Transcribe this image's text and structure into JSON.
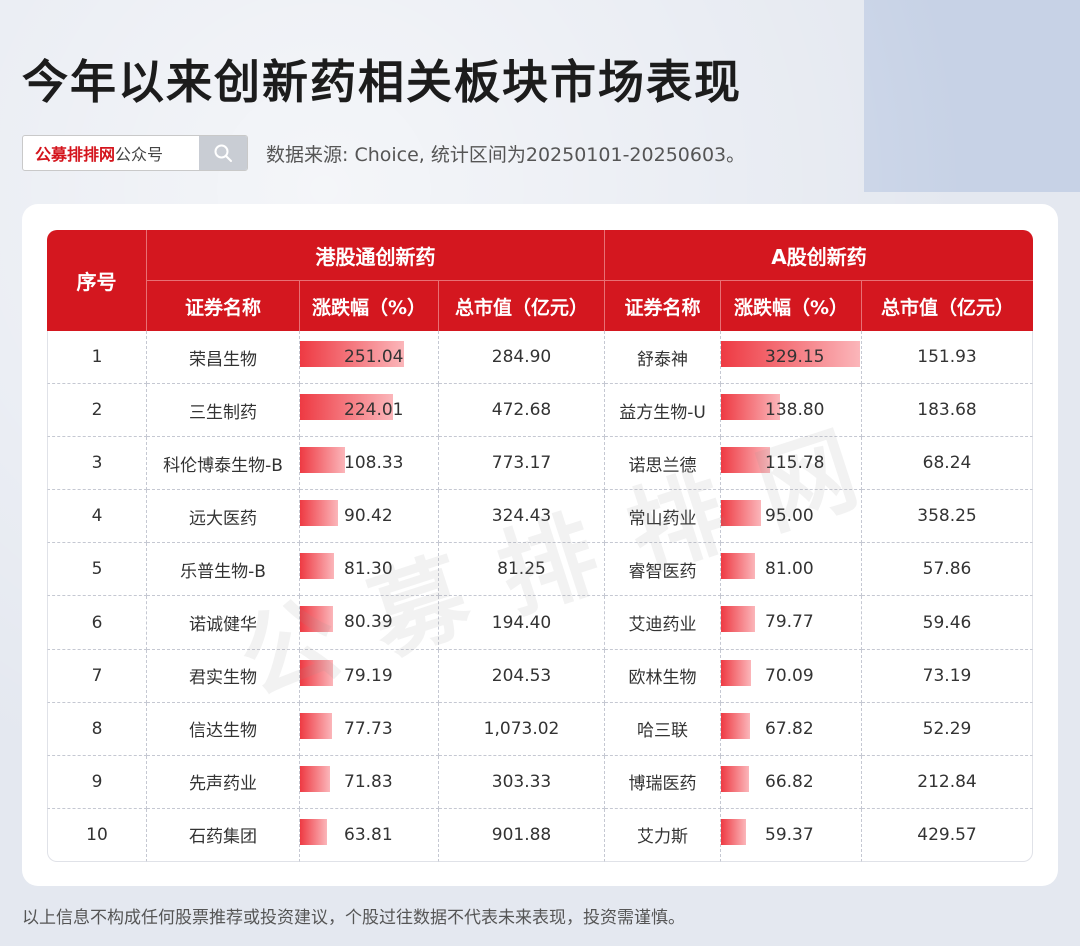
{
  "title": "今年以来创新药相关板块市场表现",
  "search": {
    "brand": "公募排排网",
    "suffix": "公众号",
    "icon": "search-icon"
  },
  "source": "数据来源: Choice, 统计区间为20250101-20250603。",
  "table": {
    "seq_header": "序号",
    "hk_group": "港股通创新药",
    "a_group": "A股创新药",
    "col_name": "证券名称",
    "col_pct": "涨跌幅（%）",
    "col_cap": "总市值（亿元）",
    "rows": [
      {
        "seq": "1",
        "hk_name": "荣昌生物",
        "hk_pct": "251.04",
        "hk_cap": "284.90",
        "a_name": "舒泰神",
        "a_pct": "329.15",
        "a_cap": "151.93"
      },
      {
        "seq": "2",
        "hk_name": "三生制药",
        "hk_pct": "224.01",
        "hk_cap": "472.68",
        "a_name": "益方生物-U",
        "a_pct": "138.80",
        "a_cap": "183.68"
      },
      {
        "seq": "3",
        "hk_name": "科伦博泰生物-B",
        "hk_pct": "108.33",
        "hk_cap": "773.17",
        "a_name": "诺思兰德",
        "a_pct": "115.78",
        "a_cap": "68.24"
      },
      {
        "seq": "4",
        "hk_name": "远大医药",
        "hk_pct": "90.42",
        "hk_cap": "324.43",
        "a_name": "常山药业",
        "a_pct": "95.00",
        "a_cap": "358.25"
      },
      {
        "seq": "5",
        "hk_name": "乐普生物-B",
        "hk_pct": "81.30",
        "hk_cap": "81.25",
        "a_name": "睿智医药",
        "a_pct": "81.00",
        "a_cap": "57.86"
      },
      {
        "seq": "6",
        "hk_name": "诺诚健华",
        "hk_pct": "80.39",
        "hk_cap": "194.40",
        "a_name": "艾迪药业",
        "a_pct": "79.77",
        "a_cap": "59.46"
      },
      {
        "seq": "7",
        "hk_name": "君实生物",
        "hk_pct": "79.19",
        "hk_cap": "204.53",
        "a_name": "欧林生物",
        "a_pct": "70.09",
        "a_cap": "73.19"
      },
      {
        "seq": "8",
        "hk_name": "信达生物",
        "hk_pct": "77.73",
        "hk_cap": "1,073.02",
        "a_name": "哈三联",
        "a_pct": "67.82",
        "a_cap": "52.29"
      },
      {
        "seq": "9",
        "hk_name": "先声药业",
        "hk_pct": "71.83",
        "hk_cap": "303.33",
        "a_name": "博瑞医药",
        "a_pct": "66.82",
        "a_cap": "212.84"
      },
      {
        "seq": "10",
        "hk_name": "石药集团",
        "hk_pct": "63.81",
        "hk_cap": "901.88",
        "a_name": "艾力斯",
        "a_pct": "59.37",
        "a_cap": "429.57"
      }
    ]
  },
  "watermark": "公募排排网",
  "disclaimer": "以上信息不构成任何股票推荐或投资建议，个股过往数据不代表未来表现，投资需谨慎。",
  "colors": {
    "accent": "#d4171f",
    "bar_start": "#ee3a43",
    "bar_end": "#fbb6ba"
  }
}
